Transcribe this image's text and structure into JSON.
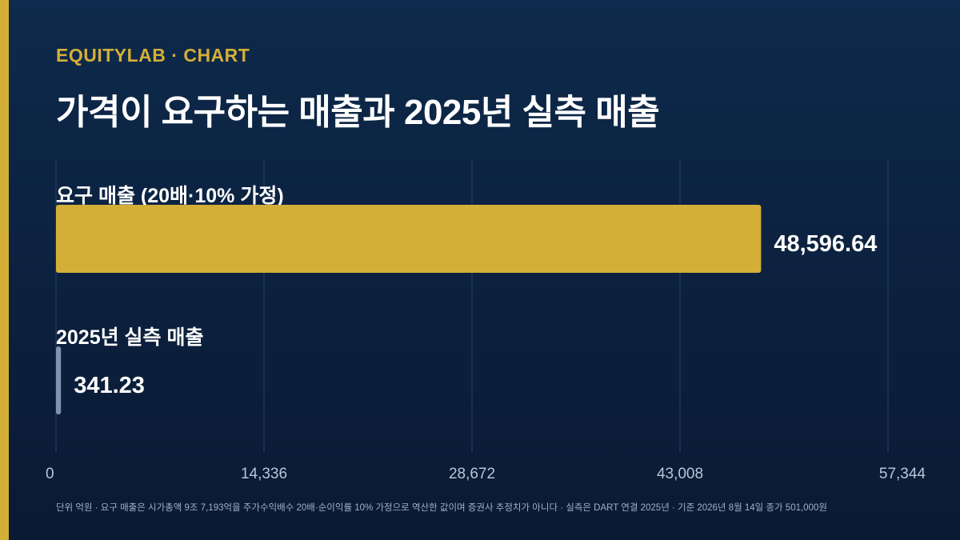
{
  "header": {
    "brand": "EQUITYLAB · CHART",
    "title": "가격이 요구하는 매출과 2025년 실측 매출"
  },
  "colors": {
    "accent": "#d4af37",
    "actual_bar": "#7f93b3",
    "grid": "#2c4266",
    "tick_text": "#b9c6d8"
  },
  "chart_data": {
    "type": "bar",
    "orientation": "horizontal",
    "categories": [
      "요구 매출 (20배·10% 가정)",
      "2025년 실측 매출"
    ],
    "values": [
      48596.64,
      341.23
    ],
    "value_labels": [
      "48,596.64",
      "341.23"
    ],
    "xlim": [
      0,
      57344
    ],
    "xticks": [
      0,
      14336,
      28672,
      43008,
      57344
    ],
    "xtick_labels": [
      "0",
      "14,336",
      "28,672",
      "43,008",
      "57,344"
    ],
    "grid": true,
    "title": "가격이 요구하는 매출과 2025년 실측 매출"
  },
  "footnote": "단위 억원 · 요구 매출은 시가총액 9조 7,193억을 주가수익배수 20배·순이익률 10% 가정으로 역산한 값이며 증권사 추정치가 아니다 · 실측은 DART 연결 2025년 · 기준 2026년 8월 14일 종가 501,000원"
}
